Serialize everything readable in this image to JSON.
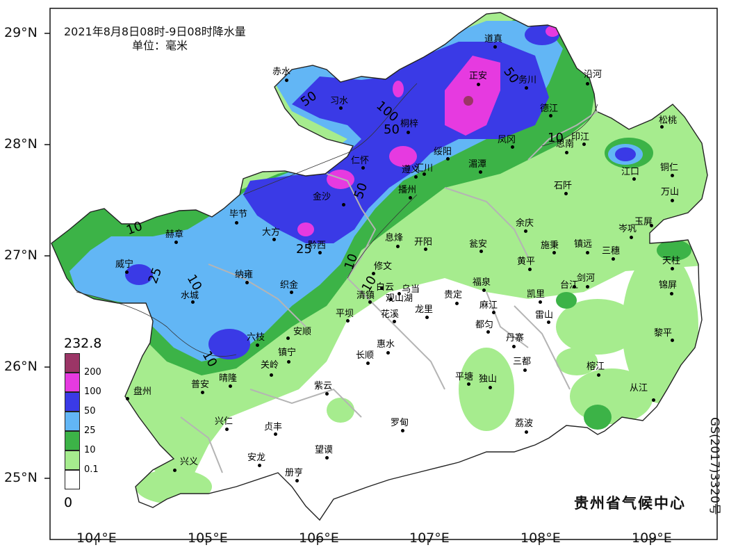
{
  "title": {
    "line1": "2021年8月8日08时-9日08时降水量",
    "line2": "单位：毫米"
  },
  "credit": "贵州省气候中心",
  "approval_number": "GS(2017)3320号",
  "axes": {
    "lat_labels": [
      "29°N",
      "28°N",
      "27°N",
      "26°N",
      "25°N"
    ],
    "lon_labels": [
      "104°E",
      "105°E",
      "106°E",
      "107°E",
      "108°E",
      "109°E"
    ]
  },
  "legend": {
    "max_value": "232.8",
    "min_value": "0",
    "levels": [
      {
        "label": "200",
        "color": "#9b3566"
      },
      {
        "label": "100",
        "color": "#e63ae0"
      },
      {
        "label": "50",
        "color": "#3a3ae6"
      },
      {
        "label": "25",
        "color": "#62b6f5"
      },
      {
        "label": "10",
        "color": "#3cb347"
      },
      {
        "label": "0.1",
        "color": "#a6ec8e"
      },
      {
        "label": "",
        "color": "#ffffff"
      }
    ]
  },
  "contour_labels": [
    "50",
    "50",
    "100",
    "50",
    "50",
    "10",
    "25",
    "10",
    "25",
    "10",
    "10",
    "10",
    "10"
  ],
  "cities": [
    "道真",
    "务川",
    "沿河",
    "赤水",
    "习水",
    "正安",
    "德江",
    "桐梓",
    "松桃",
    "凤冈",
    "印江",
    "思南",
    "绥阳",
    "湄潭",
    "江口",
    "铜仁",
    "仁怀",
    "遵义",
    "汇川",
    "播州",
    "石阡",
    "万山",
    "金沙",
    "毕节",
    "大方",
    "玉屏",
    "赫章",
    "岑巩",
    "余庆",
    "黔西",
    "息烽",
    "开阳",
    "瓮安",
    "施秉",
    "镇远",
    "三穗",
    "威宁",
    "纳雍",
    "修文",
    "黄平",
    "天柱",
    "织金",
    "白云",
    "乌当",
    "福泉",
    "剑河",
    "锦屏",
    "凯里",
    "台江",
    "清镇",
    "观山湖",
    "贵定",
    "麻江",
    "水城",
    "花溪",
    "龙里",
    "平坝",
    "雷山",
    "都匀",
    "六枝",
    "安顺",
    "丹寨",
    "黎平",
    "惠水",
    "镇宁",
    "长顺",
    "关岭",
    "三都",
    "榕江",
    "平塘",
    "独山",
    "盘州",
    "普安",
    "晴隆",
    "紫云",
    "从江",
    "兴仁",
    "贞丰",
    "罗甸",
    "荔波",
    "安龙",
    "望谟",
    "兴义",
    "册亨"
  ]
}
